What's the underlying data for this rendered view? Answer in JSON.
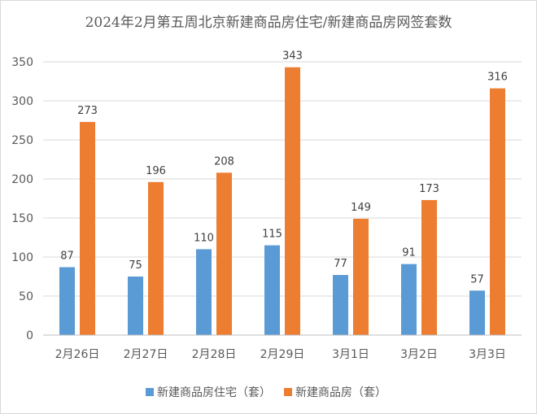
{
  "chart_data": {
    "type": "bar",
    "title": "2024年2月第五周北京新建商品房住宅/新建商品房网签套数",
    "xlabel": "",
    "ylabel": "",
    "categories": [
      "2月26日",
      "2月27日",
      "2月28日",
      "2月29日",
      "3月1日",
      "3月2日",
      "3月3日"
    ],
    "series": [
      {
        "name": "新建商品房住宅（套）",
        "values": [
          87,
          75,
          110,
          115,
          77,
          91,
          57
        ],
        "color": "#5b9bd5"
      },
      {
        "name": "新建商品房（套）",
        "values": [
          273,
          196,
          208,
          343,
          149,
          173,
          316
        ],
        "color": "#ed7d31"
      }
    ],
    "ylim": [
      0,
      350
    ],
    "yticks": [
      0,
      50,
      100,
      150,
      200,
      250,
      300,
      350
    ],
    "grid": true,
    "legend_position": "bottom",
    "data_labels": true
  }
}
